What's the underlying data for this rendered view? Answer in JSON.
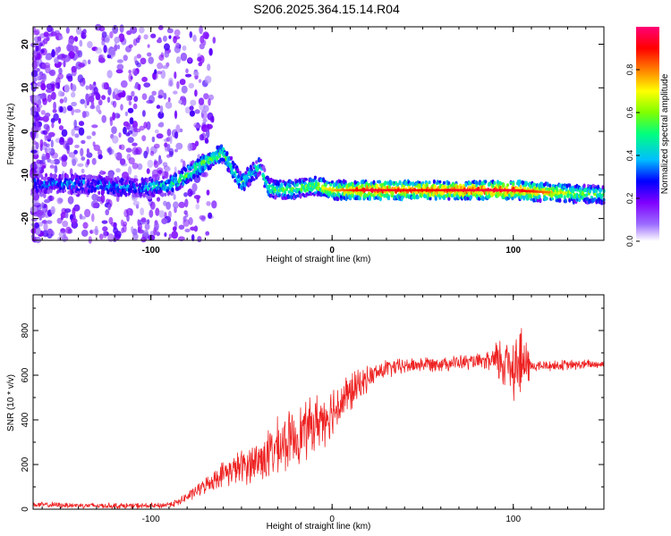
{
  "figure": {
    "title": "S206.2025.364.15.14.R04"
  },
  "chart_data": [
    {
      "type": "heatmap",
      "title": "S206.2025.364.15.14.R04",
      "xlabel": "Height of straight line (km)",
      "ylabel": "Frequency (Hz)",
      "xlim": [
        -165,
        150
      ],
      "ylim": [
        -25,
        24
      ],
      "xticks": [
        -100,
        0,
        100
      ],
      "yticks": [
        -20,
        -10,
        0,
        10,
        20
      ],
      "colorbar": {
        "label": "Normalized spectral amplitude",
        "range": [
          0,
          1
        ],
        "ticks": [
          0.0,
          0.2,
          0.4,
          0.6,
          0.8
        ],
        "tick_labels": [
          "0.0",
          "0.2",
          "0.4",
          "0.6",
          "0.8"
        ],
        "colormap": [
          "#ffffff",
          "#7f00ff",
          "#0000ff",
          "#00ffff",
          "#00ff00",
          "#ffff00",
          "#ff7f00",
          "#ff0000",
          "#ff007f"
        ]
      },
      "ridge": [
        {
          "x": -165,
          "f": -12,
          "a": 0.3
        },
        {
          "x": -140,
          "f": -12,
          "a": 0.35
        },
        {
          "x": -110,
          "f": -13,
          "a": 0.35
        },
        {
          "x": -90,
          "f": -12.5,
          "a": 0.45
        },
        {
          "x": -80,
          "f": -10,
          "a": 0.55
        },
        {
          "x": -70,
          "f": -7,
          "a": 0.55
        },
        {
          "x": -60,
          "f": -5,
          "a": 0.5
        },
        {
          "x": -50,
          "f": -12,
          "a": 0.5
        },
        {
          "x": -40,
          "f": -8,
          "a": 0.45
        },
        {
          "x": -35,
          "f": -13,
          "a": 0.5
        },
        {
          "x": -25,
          "f": -13.5,
          "a": 0.55
        },
        {
          "x": -10,
          "f": -12.5,
          "a": 0.6
        },
        {
          "x": 0,
          "f": -13.5,
          "a": 0.7
        },
        {
          "x": 20,
          "f": -13.5,
          "a": 0.9
        },
        {
          "x": 50,
          "f": -13.5,
          "a": 0.85
        },
        {
          "x": 80,
          "f": -13.5,
          "a": 0.9
        },
        {
          "x": 100,
          "f": -13.5,
          "a": 0.9
        },
        {
          "x": 120,
          "f": -14,
          "a": 0.75
        },
        {
          "x": 150,
          "f": -14.5,
          "a": 0.5
        }
      ]
    },
    {
      "type": "line",
      "xlabel": "Height of straight line (km)",
      "ylabel": "SNR (10 * v/v)",
      "xlim": [
        -165,
        150
      ],
      "ylim": [
        0,
        960
      ],
      "xticks": [
        -100,
        0,
        100
      ],
      "yticks": [
        0,
        200,
        400,
        600,
        800
      ],
      "series": [
        {
          "name": "SNR",
          "color": "#ee2222",
          "trend_x": [
            -165,
            -120,
            -95,
            -85,
            -75,
            -60,
            -40,
            -25,
            -10,
            0,
            10,
            20,
            30,
            50,
            80,
            90,
            100,
            105,
            110,
            150
          ],
          "trend_y": [
            20,
            15,
            15,
            30,
            80,
            160,
            220,
            300,
            380,
            440,
            520,
            590,
            630,
            650,
            660,
            660,
            660,
            650,
            640,
            650
          ],
          "noise_x": [
            -165,
            -90,
            -70,
            -50,
            -30,
            -10,
            0,
            10,
            20,
            40,
            85,
            92,
            100,
            106,
            110,
            150
          ],
          "noise_amp": [
            15,
            15,
            40,
            90,
            150,
            150,
            140,
            110,
            60,
            40,
            40,
            130,
            200,
            200,
            30,
            25
          ]
        }
      ]
    }
  ]
}
